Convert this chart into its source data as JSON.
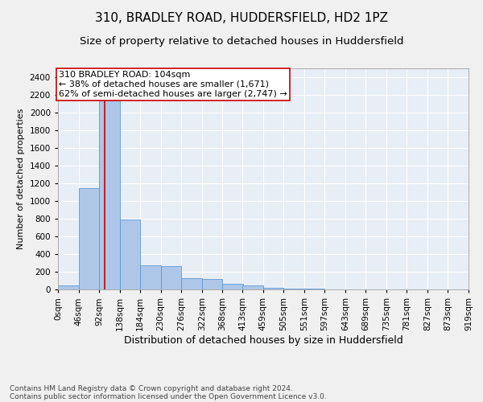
{
  "title": "310, BRADLEY ROAD, HUDDERSFIELD, HD2 1PZ",
  "subtitle": "Size of property relative to detached houses in Huddersfield",
  "xlabel": "Distribution of detached houses by size in Huddersfield",
  "ylabel": "Number of detached properties",
  "footer_line1": "Contains HM Land Registry data © Crown copyright and database right 2024.",
  "footer_line2": "Contains public sector information licensed under the Open Government Licence v3.0.",
  "bar_values": [
    50,
    1150,
    2300,
    790,
    275,
    265,
    130,
    115,
    60,
    50,
    20,
    8,
    5,
    3,
    2,
    1,
    0,
    0,
    0,
    0
  ],
  "bin_edges": [
    0,
    46,
    92,
    138,
    184,
    230,
    276,
    322,
    368,
    413,
    459,
    505,
    551,
    597,
    643,
    689,
    735,
    781,
    827,
    873,
    919
  ],
  "tick_labels": [
    "0sqm",
    "46sqm",
    "92sqm",
    "138sqm",
    "184sqm",
    "230sqm",
    "276sqm",
    "322sqm",
    "368sqm",
    "413sqm",
    "459sqm",
    "505sqm",
    "551sqm",
    "597sqm",
    "643sqm",
    "689sqm",
    "735sqm",
    "781sqm",
    "827sqm",
    "873sqm",
    "919sqm"
  ],
  "ylim": [
    0,
    2500
  ],
  "yticks": [
    0,
    200,
    400,
    600,
    800,
    1000,
    1200,
    1400,
    1600,
    1800,
    2000,
    2200,
    2400
  ],
  "bar_color": "#aec6e8",
  "bar_edge_color": "#5b9bd5",
  "bg_color": "#e8eef5",
  "grid_color": "#ffffff",
  "vline_x": 104,
  "vline_color": "#cc0000",
  "annotation_text": "310 BRADLEY ROAD: 104sqm\n← 38% of detached houses are smaller (1,671)\n62% of semi-detached houses are larger (2,747) →",
  "annotation_box_color": "#cc0000",
  "title_fontsize": 11,
  "subtitle_fontsize": 9.5,
  "xlabel_fontsize": 9,
  "ylabel_fontsize": 8,
  "tick_fontsize": 7.5,
  "footer_fontsize": 6.5,
  "annotation_fontsize": 8
}
